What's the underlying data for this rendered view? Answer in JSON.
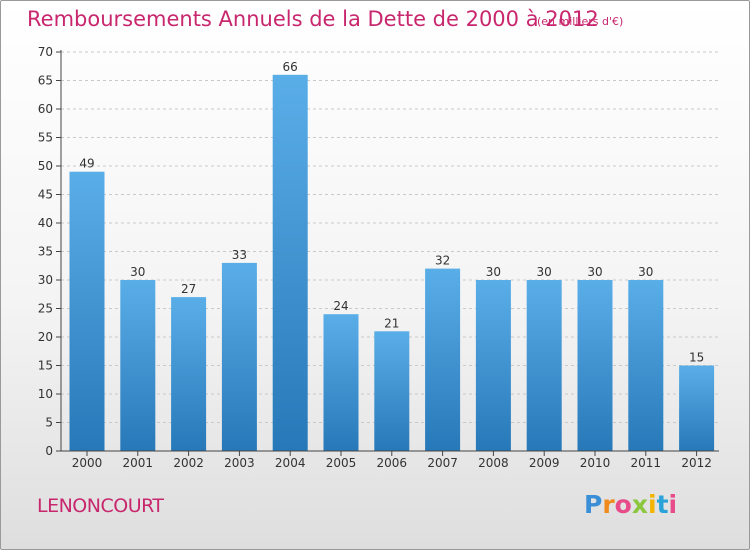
{
  "chart_data": {
    "type": "bar",
    "title": "Remboursements Annuels de la Dette de 2000 à 2012",
    "unit": "(en milliers d'€)",
    "categories": [
      "2000",
      "2001",
      "2002",
      "2003",
      "2004",
      "2005",
      "2006",
      "2007",
      "2008",
      "2009",
      "2010",
      "2011",
      "2012"
    ],
    "values": [
      49,
      30,
      27,
      33,
      66,
      24,
      21,
      32,
      30,
      30,
      30,
      30,
      15
    ],
    "ylim": [
      0,
      70
    ],
    "yticks": [
      0,
      5,
      10,
      15,
      20,
      25,
      30,
      35,
      40,
      45,
      50,
      55,
      60,
      65,
      70
    ],
    "grid": true,
    "bar_color_top": "#5aaee8",
    "bar_color_bottom": "#2778b8"
  },
  "commune": "LENONCOURT",
  "brand": "Proxiti"
}
